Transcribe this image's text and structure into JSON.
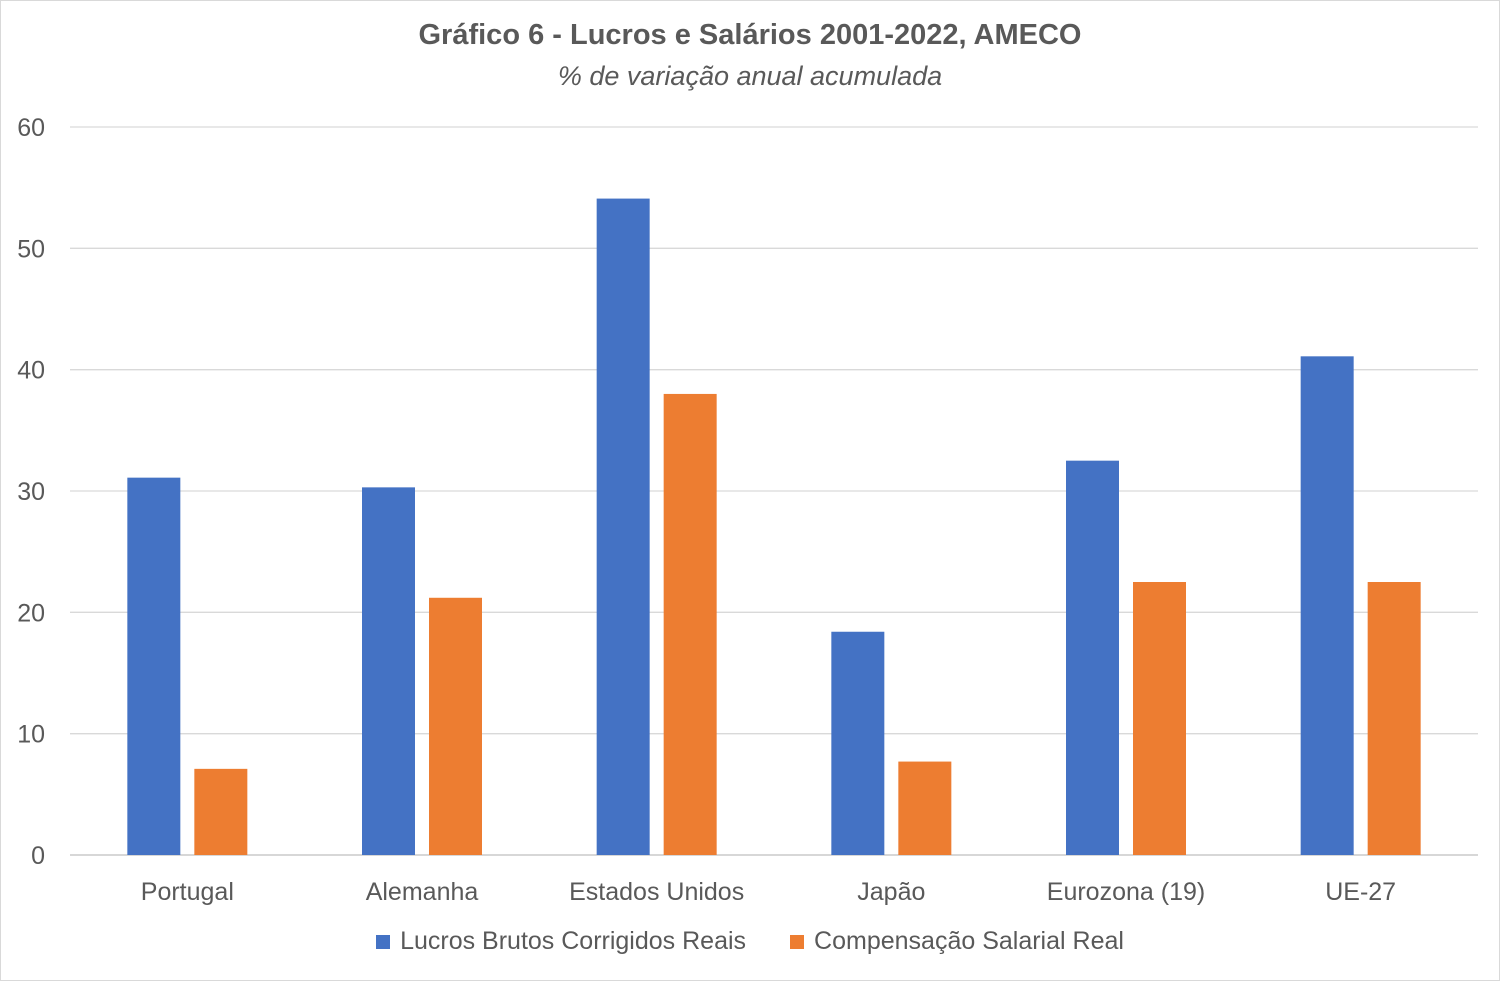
{
  "chart_data": {
    "type": "bar",
    "title": "Gráfico 6 - Lucros e Salários 2001-2022, AMECO",
    "subtitle": "% de variação anual acumulada",
    "categories": [
      "Portugal",
      "Alemanha",
      "Estados Unidos",
      "Japão",
      "Eurozona (19)",
      "UE-27"
    ],
    "series": [
      {
        "name": "Lucros Brutos Corrigidos Reais",
        "color": "#4472C4",
        "values": [
          31.1,
          30.3,
          54.1,
          18.4,
          32.5,
          41.1
        ]
      },
      {
        "name": "Compensação Salarial Real",
        "color": "#ED7D31",
        "values": [
          7.1,
          21.2,
          38.0,
          7.7,
          22.5,
          22.5
        ]
      }
    ],
    "ylim": [
      0,
      60
    ],
    "yticks": [
      0,
      10,
      20,
      30,
      40,
      50,
      60
    ],
    "grid": true,
    "legend_position": "bottom"
  }
}
